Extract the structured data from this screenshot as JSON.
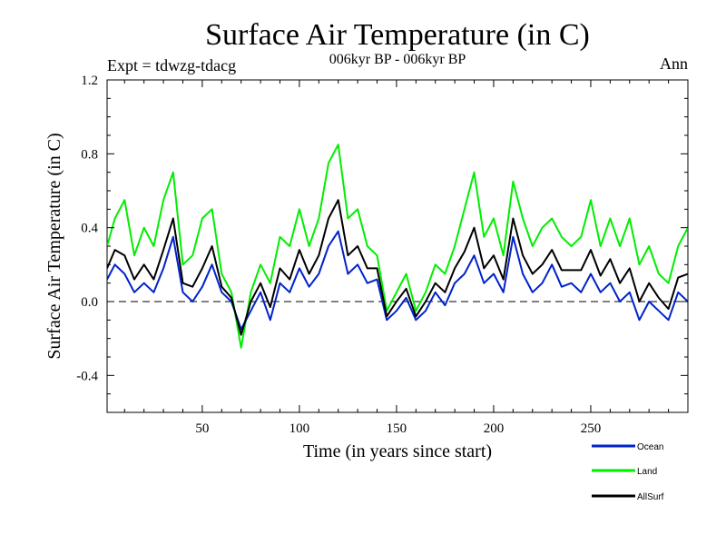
{
  "chart_data": {
    "type": "line",
    "title": "Surface Air Temperature (in C)",
    "subtitle": "006kyr BP - 006kyr BP",
    "expt_label": "Expt = tdwzg-tdacg",
    "season_label": "Ann",
    "xlabel": "Time (in years since start)",
    "ylabel": "Surface Air Temperature (in C)",
    "xlim": [
      1,
      300
    ],
    "ylim": [
      -0.6,
      1.2
    ],
    "xticks": [
      50,
      100,
      150,
      200,
      250
    ],
    "xtick_labels": [
      "50",
      "100",
      "150",
      "200",
      "250"
    ],
    "yticks": [
      -0.4,
      0.0,
      0.4,
      0.8,
      1.2
    ],
    "ytick_labels": [
      "-0.4",
      "0.0",
      "0.4",
      "0.8",
      "1.2"
    ],
    "zero_line": true,
    "grid": false,
    "legend_position": "bottom-right",
    "series": [
      {
        "name": "Ocean",
        "color": "#0022cc",
        "x": [
          1,
          5,
          10,
          15,
          20,
          25,
          30,
          35,
          40,
          45,
          50,
          55,
          60,
          65,
          70,
          75,
          80,
          85,
          90,
          95,
          100,
          105,
          110,
          115,
          120,
          125,
          130,
          135,
          140,
          145,
          150,
          155,
          160,
          165,
          170,
          175,
          180,
          185,
          190,
          195,
          200,
          205,
          210,
          215,
          220,
          225,
          230,
          235,
          240,
          245,
          250,
          255,
          260,
          265,
          270,
          275,
          280,
          285,
          290,
          295,
          300
        ],
        "values": [
          0.12,
          0.2,
          0.15,
          0.05,
          0.1,
          0.05,
          0.18,
          0.35,
          0.05,
          0.0,
          0.08,
          0.2,
          0.05,
          0.0,
          -0.15,
          -0.05,
          0.05,
          -0.1,
          0.1,
          0.05,
          0.18,
          0.08,
          0.15,
          0.3,
          0.38,
          0.15,
          0.2,
          0.1,
          0.12,
          -0.1,
          -0.05,
          0.02,
          -0.1,
          -0.05,
          0.05,
          -0.02,
          0.1,
          0.15,
          0.25,
          0.1,
          0.15,
          0.05,
          0.35,
          0.15,
          0.05,
          0.1,
          0.2,
          0.08,
          0.1,
          0.05,
          0.15,
          0.05,
          0.1,
          0.0,
          0.05,
          -0.1,
          0.0,
          -0.05,
          -0.1,
          0.05,
          0.0
        ]
      },
      {
        "name": "Land",
        "color": "#00ee00",
        "x": [
          1,
          5,
          10,
          15,
          20,
          25,
          30,
          35,
          40,
          45,
          50,
          55,
          60,
          65,
          70,
          75,
          80,
          85,
          90,
          95,
          100,
          105,
          110,
          115,
          120,
          125,
          130,
          135,
          140,
          145,
          150,
          155,
          160,
          165,
          170,
          175,
          180,
          185,
          190,
          195,
          200,
          205,
          210,
          215,
          220,
          225,
          230,
          235,
          240,
          245,
          250,
          255,
          260,
          265,
          270,
          275,
          280,
          285,
          290,
          295,
          300
        ],
        "values": [
          0.3,
          0.45,
          0.55,
          0.25,
          0.4,
          0.3,
          0.55,
          0.7,
          0.2,
          0.25,
          0.45,
          0.5,
          0.15,
          0.05,
          -0.25,
          0.05,
          0.2,
          0.1,
          0.35,
          0.3,
          0.5,
          0.3,
          0.45,
          0.75,
          0.85,
          0.45,
          0.5,
          0.3,
          0.25,
          -0.05,
          0.05,
          0.15,
          -0.05,
          0.05,
          0.2,
          0.15,
          0.3,
          0.5,
          0.7,
          0.35,
          0.45,
          0.25,
          0.65,
          0.45,
          0.3,
          0.4,
          0.45,
          0.35,
          0.3,
          0.35,
          0.55,
          0.3,
          0.45,
          0.3,
          0.45,
          0.2,
          0.3,
          0.15,
          0.1,
          0.3,
          0.4
        ]
      },
      {
        "name": "AllSurf",
        "color": "#000000",
        "x": [
          1,
          5,
          10,
          15,
          20,
          25,
          30,
          35,
          40,
          45,
          50,
          55,
          60,
          65,
          70,
          75,
          80,
          85,
          90,
          95,
          100,
          105,
          110,
          115,
          120,
          125,
          130,
          135,
          140,
          145,
          150,
          155,
          160,
          165,
          170,
          175,
          180,
          185,
          190,
          195,
          200,
          205,
          210,
          215,
          220,
          225,
          230,
          235,
          240,
          245,
          250,
          255,
          260,
          265,
          270,
          275,
          280,
          285,
          290,
          295,
          300
        ],
        "values": [
          0.18,
          0.28,
          0.25,
          0.12,
          0.2,
          0.12,
          0.28,
          0.45,
          0.1,
          0.08,
          0.18,
          0.3,
          0.08,
          0.02,
          -0.18,
          0.0,
          0.1,
          -0.03,
          0.18,
          0.12,
          0.28,
          0.15,
          0.25,
          0.45,
          0.55,
          0.25,
          0.3,
          0.18,
          0.18,
          -0.08,
          0.0,
          0.07,
          -0.08,
          0.0,
          0.1,
          0.05,
          0.18,
          0.27,
          0.4,
          0.18,
          0.25,
          0.12,
          0.45,
          0.25,
          0.15,
          0.2,
          0.28,
          0.17,
          0.17,
          0.17,
          0.28,
          0.14,
          0.23,
          0.1,
          0.18,
          0.0,
          0.1,
          0.02,
          -0.04,
          0.13,
          0.15
        ]
      }
    ]
  }
}
